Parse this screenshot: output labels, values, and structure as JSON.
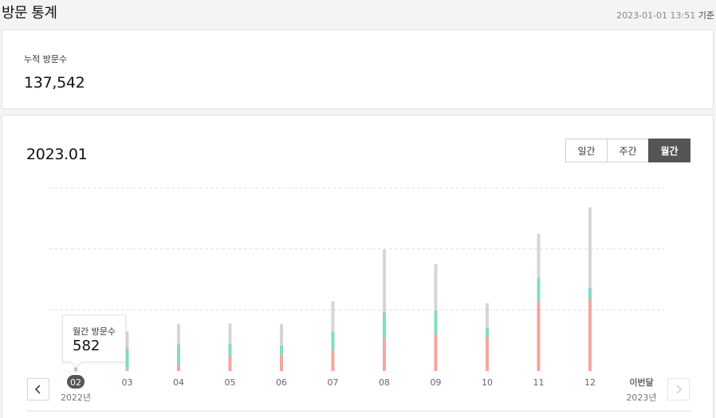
{
  "header": {
    "title": "방문 통계",
    "timestamp": "2023-01-01 13:51",
    "timestamp_suffix": "기준"
  },
  "total": {
    "label": "누적 방문수",
    "value": "137,542"
  },
  "chart_panel": {
    "period": "2023.01",
    "tabs": [
      {
        "label": "일간",
        "active": false
      },
      {
        "label": "주간",
        "active": false
      },
      {
        "label": "월간",
        "active": true
      }
    ],
    "tooltip": {
      "label": "월간 방문수",
      "value": "582"
    },
    "nav_prev_icon": "chevron-left-icon",
    "nav_next_icon": "chevron-right-icon"
  },
  "chart_data": {
    "type": "bar",
    "stacked": true,
    "categories": [
      "02",
      "03",
      "04",
      "05",
      "06",
      "07",
      "08",
      "09",
      "10",
      "11",
      "12",
      "이번달"
    ],
    "year_labels": {
      "first": "2022년",
      "last": "2023년"
    },
    "selected_index": 0,
    "series": [
      {
        "color": "#f3a79e",
        "values": [
          3,
          3,
          12,
          25,
          27,
          34,
          55,
          61,
          57,
          115,
          118,
          0
        ]
      },
      {
        "color": "#7fdcc8",
        "values": [
          3,
          34,
          32,
          20,
          15,
          31,
          42,
          38,
          14,
          38,
          18,
          0
        ]
      },
      {
        "color": "#d6d6d6",
        "values": [
          0,
          28,
          33,
          33,
          35,
          49,
          102,
          76,
          40,
          72,
          132,
          0
        ]
      }
    ],
    "ylim": [
      0,
      300
    ],
    "grid": true,
    "colors": {
      "selected_label_bg": "#555555",
      "axis_label": "#666666"
    }
  }
}
